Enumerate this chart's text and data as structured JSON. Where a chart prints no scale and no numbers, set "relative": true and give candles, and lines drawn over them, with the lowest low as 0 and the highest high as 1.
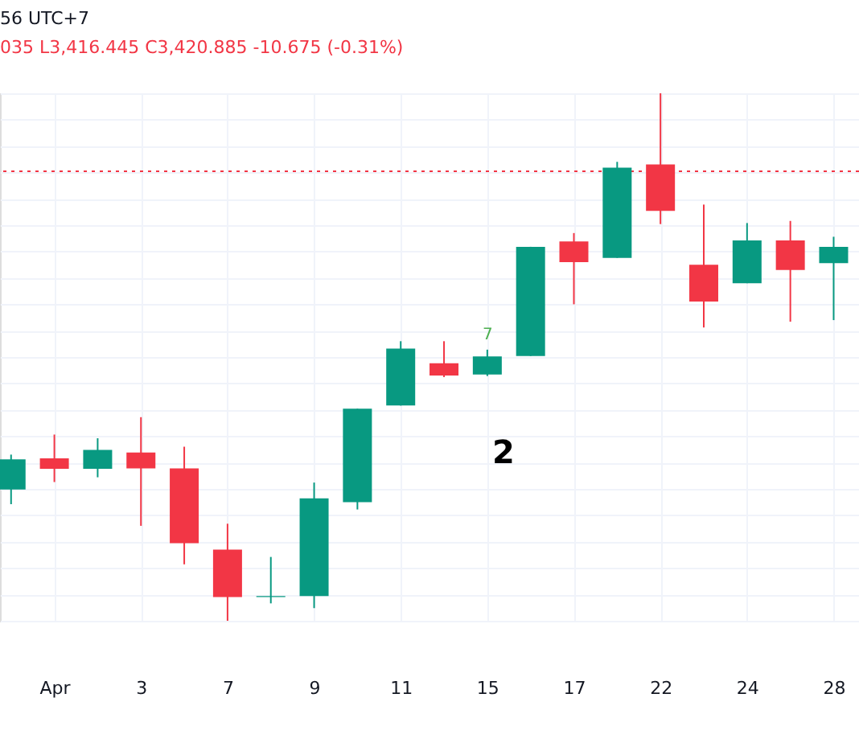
{
  "chart_data": {
    "type": "candlestick",
    "relative": true,
    "categories": [
      null,
      "Apr",
      null,
      "3",
      null,
      "7",
      null,
      "9",
      null,
      "11",
      null,
      "15",
      null,
      "17",
      null,
      "22",
      null,
      "24",
      null,
      "28"
    ],
    "ohlc": [
      [
        0.249,
        0.315,
        0.221,
        0.306
      ],
      [
        0.308,
        0.353,
        0.263,
        0.288
      ],
      [
        0.288,
        0.346,
        0.272,
        0.324
      ],
      [
        0.319,
        0.386,
        0.18,
        0.289
      ],
      [
        0.289,
        0.33,
        0.107,
        0.147
      ],
      [
        0.135,
        0.184,
        0.0,
        0.045
      ],
      [
        0.045,
        0.121,
        0.033,
        0.047
      ],
      [
        0.047,
        0.262,
        0.024,
        0.232
      ],
      [
        0.225,
        0.402,
        0.211,
        0.402
      ],
      [
        0.408,
        0.53,
        0.408,
        0.516
      ],
      [
        0.488,
        0.53,
        0.462,
        0.465
      ],
      [
        0.467,
        0.514,
        0.464,
        0.501
      ],
      [
        0.502,
        0.709,
        0.502,
        0.709
      ],
      [
        0.719,
        0.735,
        0.6,
        0.68
      ],
      [
        0.688,
        0.87,
        0.688,
        0.859
      ],
      [
        0.865,
        1.0,
        0.752,
        0.777
      ],
      [
        0.675,
        0.789,
        0.556,
        0.605
      ],
      [
        0.64,
        0.754,
        0.64,
        0.721
      ],
      [
        0.721,
        0.758,
        0.567,
        0.665
      ],
      [
        0.678,
        0.728,
        0.57,
        0.709
      ]
    ],
    "colors": [
      "#089981",
      "#f23645",
      "#089981",
      "#f23645",
      "#f23645",
      "#f23645",
      "#089981",
      "#089981",
      "#089981",
      "#089981",
      "#f23645",
      "#089981",
      "#089981",
      "#f23645",
      "#089981",
      "#f23645",
      "#f23645",
      "#089981",
      "#f23645",
      "#089981"
    ],
    "ref_lines": [
      {
        "axis": "y",
        "value": 0.852,
        "color": "#f23645",
        "line_style": "dotted"
      }
    ],
    "annotations": [
      "56 UTC+7",
      "035 L3,416.445 C3,420.885 -10.675 (-0.31%)",
      "7",
      "2"
    ],
    "grid": true
  }
}
